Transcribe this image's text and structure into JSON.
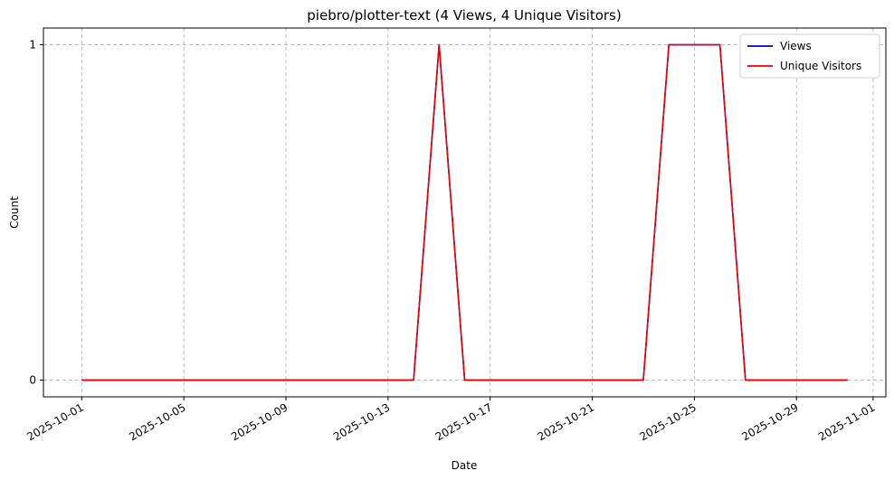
{
  "chart_data": {
    "type": "line",
    "title": "piebro/plotter-text (4 Views, 4 Unique Visitors)",
    "xlabel": "Date",
    "ylabel": "Count",
    "x": [
      "2025-10-01",
      "2025-10-02",
      "2025-10-03",
      "2025-10-04",
      "2025-10-05",
      "2025-10-06",
      "2025-10-07",
      "2025-10-08",
      "2025-10-09",
      "2025-10-10",
      "2025-10-11",
      "2025-10-12",
      "2025-10-13",
      "2025-10-14",
      "2025-10-15",
      "2025-10-16",
      "2025-10-17",
      "2025-10-18",
      "2025-10-19",
      "2025-10-20",
      "2025-10-21",
      "2025-10-22",
      "2025-10-23",
      "2025-10-24",
      "2025-10-25",
      "2025-10-26",
      "2025-10-27",
      "2025-10-28",
      "2025-10-29",
      "2025-10-30",
      "2025-10-31"
    ],
    "series": [
      {
        "name": "Views",
        "color": "#0000cc",
        "values": [
          0,
          0,
          0,
          0,
          0,
          0,
          0,
          0,
          0,
          0,
          0,
          0,
          0,
          0,
          1,
          0,
          0,
          0,
          0,
          0,
          0,
          0,
          0,
          1,
          1,
          1,
          0,
          0,
          0,
          0,
          0
        ]
      },
      {
        "name": "Unique Visitors",
        "color": "#ee0000",
        "values": [
          0,
          0,
          0,
          0,
          0,
          0,
          0,
          0,
          0,
          0,
          0,
          0,
          0,
          0,
          1,
          0,
          0,
          0,
          0,
          0,
          0,
          0,
          0,
          1,
          1,
          1,
          0,
          0,
          0,
          0,
          0
        ]
      }
    ],
    "x_ticks": [
      "2025-10-01",
      "2025-10-05",
      "2025-10-09",
      "2025-10-13",
      "2025-10-17",
      "2025-10-21",
      "2025-10-25",
      "2025-10-29",
      "2025-11-01"
    ],
    "y_ticks": [
      "0",
      "1"
    ],
    "xlim": [
      "2025-09-29.5",
      "2025-11-01.5"
    ],
    "ylim": [
      -0.05,
      1.05
    ],
    "grid": true,
    "legend_position": "top-right"
  }
}
